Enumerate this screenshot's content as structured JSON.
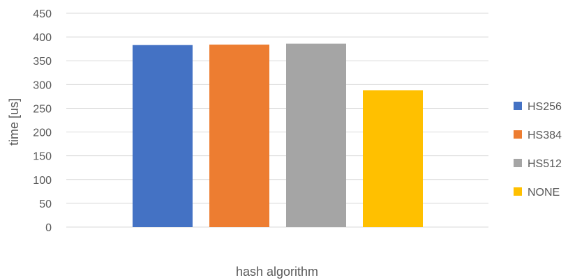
{
  "chart_data": {
    "type": "bar",
    "title": "",
    "xlabel": "hash algorithm",
    "ylabel": "time [us]",
    "ylim": [
      0,
      450
    ],
    "yticks": [
      0,
      50,
      100,
      150,
      200,
      250,
      300,
      350,
      400,
      450
    ],
    "grid": true,
    "legend_position": "right",
    "series": [
      {
        "name": "HS256",
        "value": 383,
        "color": "#4472c4"
      },
      {
        "name": "HS384",
        "value": 384,
        "color": "#ed7d31"
      },
      {
        "name": "HS512",
        "value": 386,
        "color": "#a5a5a5"
      },
      {
        "name": "NONE",
        "value": 288,
        "color": "#ffc000"
      }
    ]
  }
}
